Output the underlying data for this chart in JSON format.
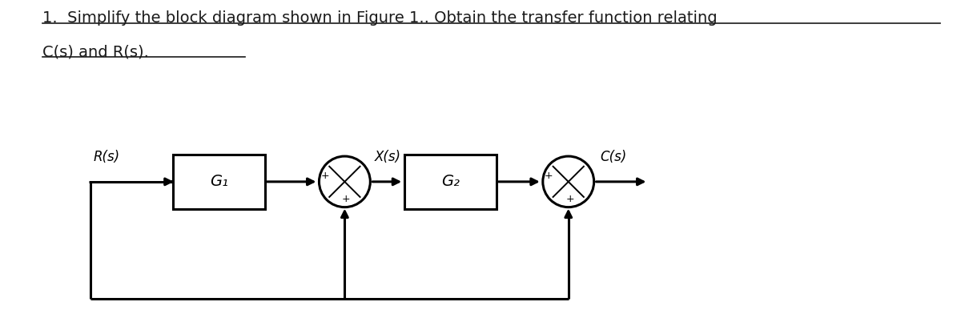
{
  "title_line1": "1.  Simplify the block diagram shown in Figure 1.. Obtain the transfer function relating",
  "title_line2": "C(s) and R(s).",
  "bg_color": "#ffffff",
  "text_color": "#1a1a1a",
  "diagram": {
    "R_label": "R(s)",
    "G1_label": "G₁",
    "G2_label": "G₂",
    "X_label": "X(s)",
    "C_label": "C(s)"
  },
  "title_fontsize": 14,
  "label_fontsize": 12,
  "block_fontsize": 14
}
